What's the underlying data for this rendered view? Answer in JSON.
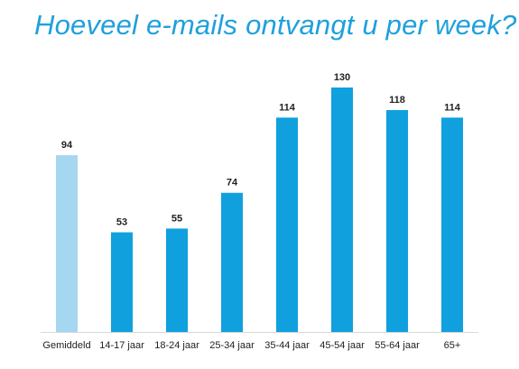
{
  "chart_data": {
    "type": "bar",
    "title": "Hoeveel e-mails ontvangt u per week?",
    "categories": [
      "Gemiddeld",
      "14-17 jaar",
      "18-24 jaar",
      "25-34 jaar",
      "35-44 jaar",
      "45-54 jaar",
      "55-64 jaar",
      "65+"
    ],
    "values": [
      94,
      53,
      55,
      74,
      114,
      130,
      118,
      114
    ],
    "value_labels": [
      "94",
      "53",
      "55",
      "74",
      "114",
      "130",
      "118",
      "114"
    ],
    "highlight_index": 0,
    "ylim": [
      0,
      130
    ],
    "grid": false,
    "xlabel": "",
    "ylabel": "",
    "colors": {
      "bar": "#10a0de",
      "highlight_bar": "#a6d7f1",
      "title": "#1ea0dc",
      "axis": "#d9d9d9",
      "text": "#222222"
    }
  }
}
